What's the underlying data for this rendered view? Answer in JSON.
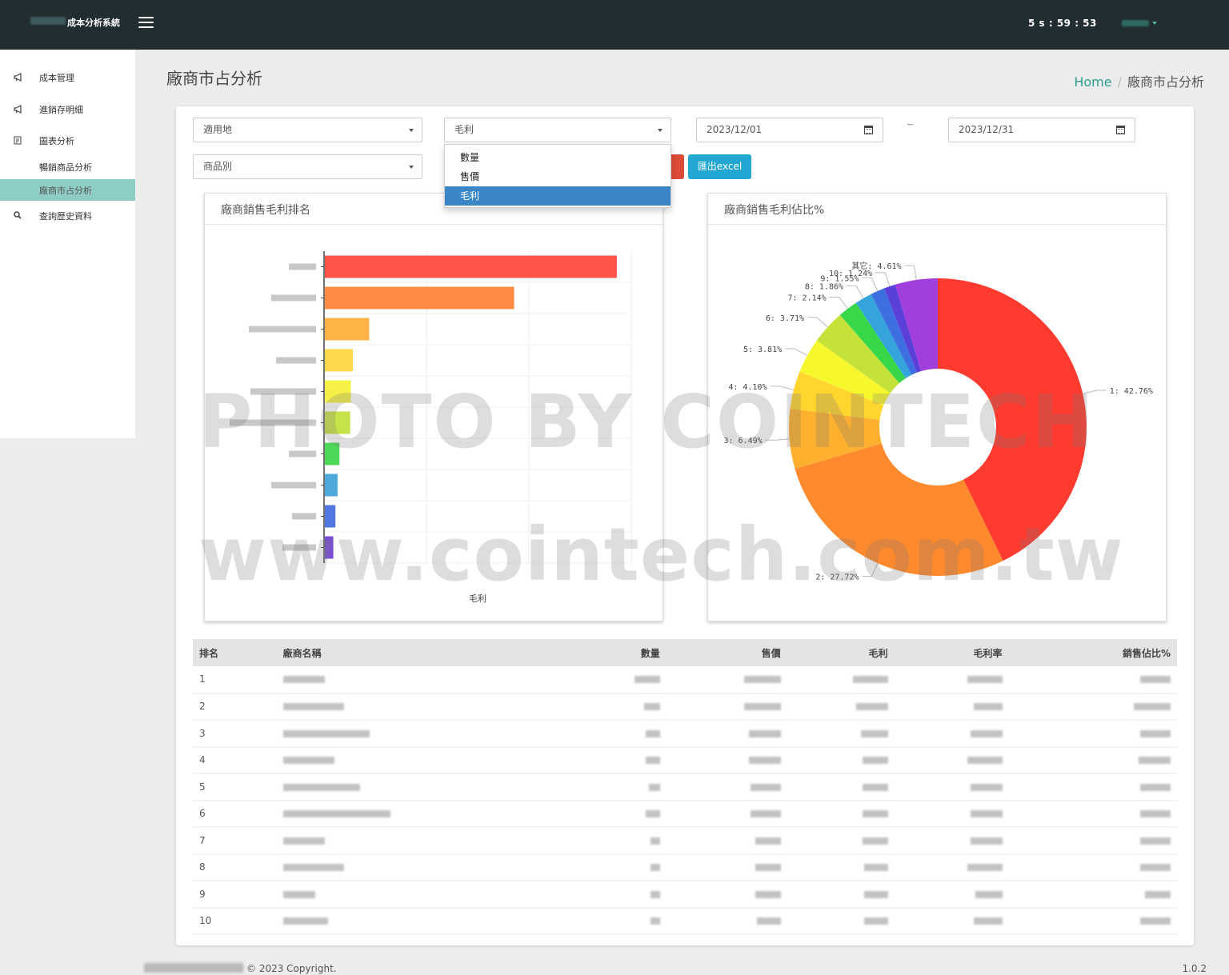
{
  "header": {
    "app_title": "成本分析系統",
    "timer": "5 s : 59  : 53"
  },
  "sidebar": {
    "items": [
      {
        "label": "成本管理",
        "icon": "megaphone-icon"
      },
      {
        "label": "進銷存明細",
        "icon": "megaphone-icon"
      },
      {
        "label": "圖表分析",
        "icon": "chart-icon"
      },
      {
        "label": "暢銷商品分析",
        "icon": ""
      },
      {
        "label": "廠商市占分析",
        "icon": ""
      },
      {
        "label": "查詢歷史資料",
        "icon": "search-icon"
      }
    ]
  },
  "page": {
    "title": "廠商市占分析",
    "breadcrumb_home": "Home",
    "breadcrumb_sep": "/",
    "breadcrumb_current": "廠商市占分析"
  },
  "filters": {
    "location": "適用地",
    "metric": "毛利",
    "date_from": "2023/12/01",
    "date_to": "2023/12/31",
    "tilde": "~",
    "category": "商品別",
    "metric_options": [
      "數量",
      "售價",
      "毛利"
    ],
    "metric_selected_index": 2,
    "export_label": "匯出excel"
  },
  "bar_panel": {
    "title": "廠商銷售毛利排名"
  },
  "pie_panel": {
    "title": "廠商銷售毛利佔比%"
  },
  "chart_data": [
    {
      "type": "bar",
      "orientation": "horizontal",
      "title": "廠商銷售毛利排名",
      "xlabel": "毛利",
      "categories": [
        "1",
        "2",
        "3",
        "4",
        "5",
        "6",
        "7",
        "8",
        "9",
        "10"
      ],
      "values": [
        42.76,
        27.72,
        6.49,
        4.1,
        3.81,
        3.71,
        2.14,
        1.86,
        1.55,
        1.24
      ],
      "colors": [
        "#ff5349",
        "#ff8c42",
        "#ffb347",
        "#fcd94a",
        "#f6f147",
        "#c7e34a",
        "#4dd85a",
        "#4ea8da",
        "#5177e0",
        "#7a4fd6"
      ],
      "grid": true
    },
    {
      "type": "pie",
      "title": "廠商銷售毛利佔比%",
      "labels": [
        "1: 42.76%",
        "2: 27.72%",
        "3: 6.49%",
        "4: 4.10%",
        "5: 3.81%",
        "6: 3.71%",
        "7: 2.14%",
        "8: 1.86%",
        "9: 1.55%",
        "10: 1.24%",
        "其它: 4.61%"
      ],
      "values": [
        42.76,
        27.72,
        6.49,
        4.1,
        3.81,
        3.71,
        2.14,
        1.86,
        1.55,
        1.24,
        4.61
      ],
      "colors": [
        "#ff3b30",
        "#ff8a2e",
        "#ffb02e",
        "#ffd52e",
        "#f7f72e",
        "#c5e23a",
        "#36d84a",
        "#36a4dc",
        "#3d6fe0",
        "#5a3fd8",
        "#a13fdc"
      ],
      "donut": true
    }
  ],
  "table": {
    "headers": [
      "排名",
      "廠商名稱",
      "數量",
      "售價",
      "毛利",
      "毛利率",
      "銷售佔比%"
    ],
    "ranks": [
      "1",
      "2",
      "3",
      "4",
      "5",
      "6",
      "7",
      "8",
      "9",
      "10"
    ]
  },
  "footer": {
    "copyright": "© 2023 Copyright.",
    "version": "1.0.2"
  },
  "watermark": {
    "line1": "PHOTO BY COINTECH",
    "line2": "www.cointech.com.tw"
  }
}
